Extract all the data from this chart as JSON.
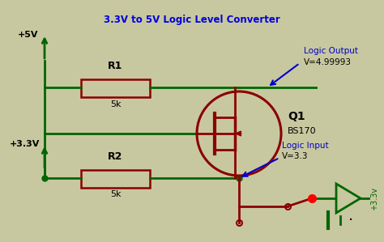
{
  "title": "3.3V to 5V Logic Level Converter",
  "title_color": "#0000DD",
  "bg_color": "#c8c8a0",
  "wire_color": "#006600",
  "resistor_color": "#8B0000",
  "transistor_color": "#8B0000",
  "label_color": "#000000",
  "annotation_color": "#0000CC",
  "supply_5v": "+5V",
  "supply_33v": "+3.3V",
  "r1_label": "R1",
  "r1_value": "5k",
  "r2_label": "R2",
  "r2_value": "5k",
  "q1_label": "Q1",
  "q1_model": "BS170",
  "output_label": "Logic Output",
  "output_value": "V=4.99993",
  "input_label": "Logic Input",
  "input_value": "V=3.3",
  "right_label": "+3.3v",
  "resistor_fill": "#c8c8a0"
}
